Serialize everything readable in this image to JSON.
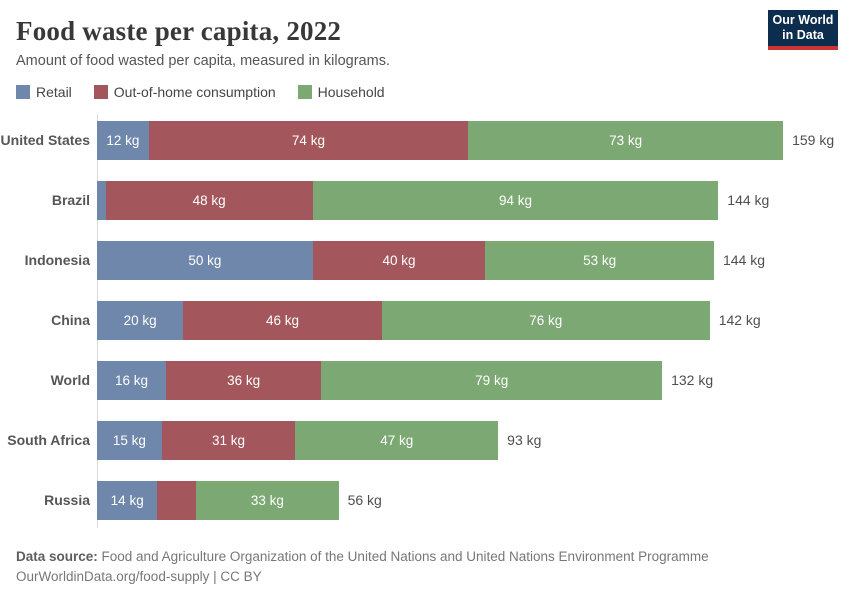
{
  "header": {
    "title": "Food waste per capita, 2022",
    "subtitle": "Amount of food wasted per capita, measured in kilograms.",
    "logo": {
      "line1": "Our World",
      "line2": "in Data"
    }
  },
  "colors": {
    "retail": "#6e87ab",
    "out_of_home": "#a3575d",
    "household": "#7ca873",
    "logo_navy": "#0d2d4f",
    "logo_red": "#cd3235",
    "axis_line": "#dadada"
  },
  "legend": [
    {
      "label": "Retail",
      "color": "#6e87ab"
    },
    {
      "label": "Out-of-home consumption",
      "color": "#a3575d"
    },
    {
      "label": "Household",
      "color": "#7ca873"
    }
  ],
  "chart_data": {
    "type": "bar",
    "orientation": "horizontal",
    "stacked": true,
    "unit": "kg",
    "title": "Food waste per capita, 2022",
    "categories": [
      "United States",
      "Brazil",
      "Indonesia",
      "China",
      "World",
      "South Africa",
      "Russia"
    ],
    "series": [
      {
        "name": "Retail",
        "color": "#6e87ab",
        "values": [
          12,
          2,
          50,
          20,
          16,
          15,
          14
        ]
      },
      {
        "name": "Out-of-home consumption",
        "color": "#a3575d",
        "values": [
          74,
          48,
          40,
          46,
          36,
          31,
          9
        ]
      },
      {
        "name": "Household",
        "color": "#7ca873",
        "values": [
          73,
          94,
          53,
          76,
          79,
          47,
          33
        ]
      }
    ],
    "totals": [
      159,
      144,
      144,
      142,
      132,
      93,
      56
    ],
    "segment_labels": [
      [
        "12 kg",
        "74 kg",
        "73 kg"
      ],
      [
        "",
        "48 kg",
        "94 kg"
      ],
      [
        "50 kg",
        "40 kg",
        "53 kg"
      ],
      [
        "20 kg",
        "46 kg",
        "76 kg"
      ],
      [
        "16 kg",
        "36 kg",
        "79 kg"
      ],
      [
        "15 kg",
        "31 kg",
        "47 kg"
      ],
      [
        "14 kg",
        "",
        "33 kg"
      ]
    ],
    "total_labels": [
      "159 kg",
      "144 kg",
      "144 kg",
      "142 kg",
      "132 kg",
      "93 kg",
      "56 kg"
    ],
    "xlim": [
      0,
      159
    ],
    "grid": false,
    "legend_position": "top"
  },
  "footer": {
    "datasource_label": "Data source:",
    "datasource_text": " Food and Agriculture Organization of the United Nations and United Nations Environment Programme",
    "citation": "OurWorldinData.org/food-supply | CC BY"
  }
}
